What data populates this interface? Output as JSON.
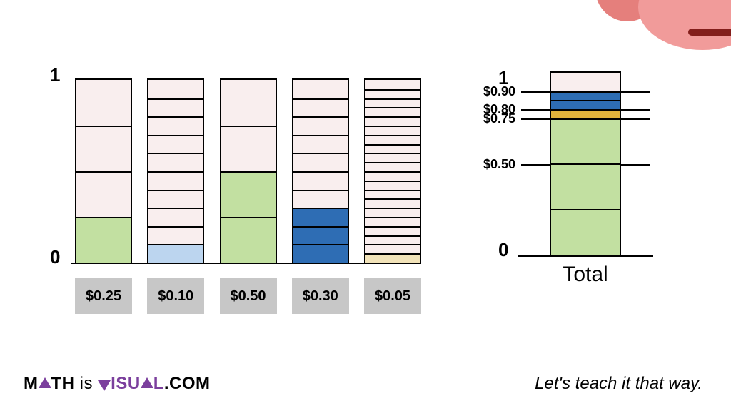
{
  "axis": {
    "top": "1",
    "bottom": "0"
  },
  "colors": {
    "empty": "#F9EEEE",
    "green": "#C2E0A1",
    "lightblue": "#BCD5EF",
    "blue": "#2E6DB4",
    "cream": "#F2E3B9",
    "gold": "#E2B33C",
    "border": "#000000",
    "pricebox_bg": "#C7C7C7"
  },
  "bars": [
    {
      "label": "$0.25",
      "divisions": 4,
      "filled": 1,
      "fill_color": "#C2E0A1"
    },
    {
      "label": "$0.10",
      "divisions": 10,
      "filled": 1,
      "fill_color": "#BCD5EF"
    },
    {
      "label": "$0.50",
      "divisions": 4,
      "filled": 2,
      "fill_color": "#C2E0A1"
    },
    {
      "label": "$0.30",
      "divisions": 10,
      "filled": 3,
      "fill_color": "#2E6DB4"
    },
    {
      "label": "$0.05",
      "divisions": 20,
      "filled": 1,
      "fill_color": "#F2E3B9"
    }
  ],
  "total": {
    "label": "Total",
    "divisions": 20,
    "segments": [
      {
        "from": 0,
        "to": 0.75,
        "color": "#C2E0A1"
      },
      {
        "from": 0.75,
        "to": 0.8,
        "color": "#E2B33C"
      },
      {
        "from": 0.8,
        "to": 0.85,
        "color": "#2E6DB4"
      },
      {
        "from": 0.85,
        "to": 0.9,
        "color": "#2E6DB4"
      },
      {
        "from": 0.9,
        "to": 1.0,
        "color": "#F9EEEE"
      }
    ],
    "inner_lines": [
      0.25,
      0.5
    ],
    "ticks": [
      {
        "value": 0.9,
        "label": "$0.90"
      },
      {
        "value": 0.8,
        "label": "$0.80"
      },
      {
        "value": 0.75,
        "label": "$0.75"
      },
      {
        "value": 0.5,
        "label": "$0.50"
      }
    ]
  },
  "footer": {
    "brand_m": "M",
    "brand_th": "TH",
    "brand_is": " is ",
    "brand_isu": "ISU",
    "brand_l": "L",
    "brand_com": ".COM",
    "tagline": "Let's teach it that way."
  }
}
